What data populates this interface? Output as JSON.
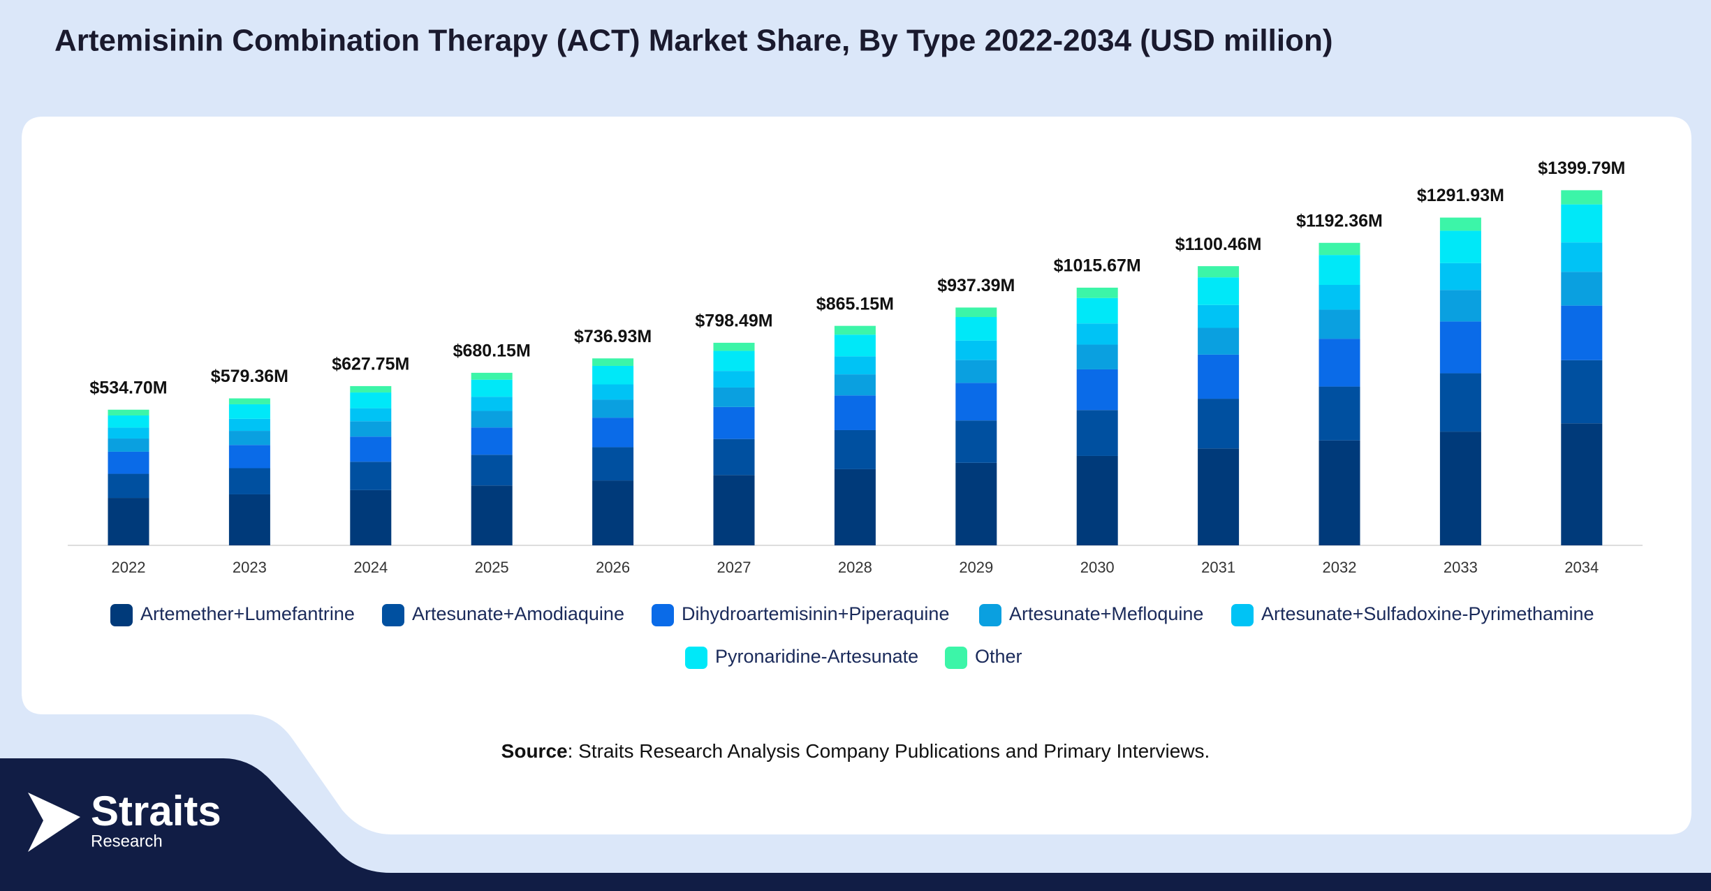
{
  "chart_data": {
    "type": "stacked_bar",
    "title": "Artemisinin Combination Therapy (ACT) Market Share, By Type 2022-2034 (USD million)",
    "categories": [
      "2022",
      "2023",
      "2024",
      "2025",
      "2026",
      "2027",
      "2028",
      "2029",
      "2030",
      "2031",
      "2032",
      "2033",
      "2034"
    ],
    "ylim": [
      0,
      1500
    ],
    "series": [
      {
        "name": "Artemether+Lumefantrine",
        "color": "#003a7a",
        "values": [
          187,
          201.0,
          217.8,
          236.0,
          255.7,
          277.1,
          300.2,
          325.3,
          352.4,
          381.9,
          413.7,
          448.3,
          481
        ]
      },
      {
        "name": "Artesunate+Amodiaquine",
        "color": "#0050a0",
        "values": [
          95,
          103.1,
          111.7,
          121.1,
          131.2,
          142.1,
          154.0,
          166.9,
          180.8,
          195.9,
          212.2,
          230.0,
          249
        ]
      },
      {
        "name": "Dihydroartemisinin+Piperaquine",
        "color": "#0a6be8",
        "values": [
          87,
          91.5,
          99.2,
          107.5,
          116.4,
          126.2,
          136.7,
          148.1,
          160.5,
          173.9,
          188.4,
          204.1,
          215
        ]
      },
      {
        "name": "Artesunate+Mefloquine",
        "color": "#0aa0e0",
        "values": [
          52,
          55.6,
          60.3,
          65.3,
          70.7,
          76.7,
          83.1,
          90.0,
          97.5,
          105.6,
          114.5,
          124.0,
          133
        ]
      },
      {
        "name": "Artesunate+Sulfadoxine-Pyrimethamine",
        "color": "#00c3f5",
        "values": [
          43,
          47.5,
          51.5,
          55.8,
          60.4,
          65.5,
          70.9,
          76.9,
          83.3,
          90.2,
          97.8,
          105.9,
          116
        ]
      },
      {
        "name": "Pyronaridine-Artesunate",
        "color": "#00e8f8",
        "values": [
          48,
          57.4,
          62.1,
          67.3,
          73.0,
          79.1,
          85.6,
          92.8,
          100.6,
          108.9,
          118.0,
          127.9,
          150
        ]
      },
      {
        "name": "Other",
        "color": "#3cf5a8",
        "values": [
          22.7,
          23.26,
          25.15,
          27.15,
          29.53,
          31.79,
          34.65,
          37.39,
          40.57,
          44.06,
          47.76,
          51.73,
          55.79
        ]
      }
    ],
    "totals": {
      "values": [
        534.7,
        579.36,
        627.75,
        680.15,
        736.93,
        798.49,
        865.15,
        937.39,
        1015.67,
        1100.46,
        1192.36,
        1291.93,
        1399.79
      ],
      "value_labels": [
        "$534.70M",
        "$579.36M",
        "$627.75M",
        "$680.15M",
        "$736.93M",
        "$798.49M",
        "$865.15M",
        "$937.39M",
        "$1015.67M",
        "$1100.46M",
        "$1192.36M",
        "$1291.93M",
        "$1399.79M"
      ]
    },
    "source_label": "Source",
    "source_text": ": Straits Research Analysis Company Publications and Primary Interviews.",
    "logo_name": "Straits",
    "logo_sub": "Research"
  }
}
